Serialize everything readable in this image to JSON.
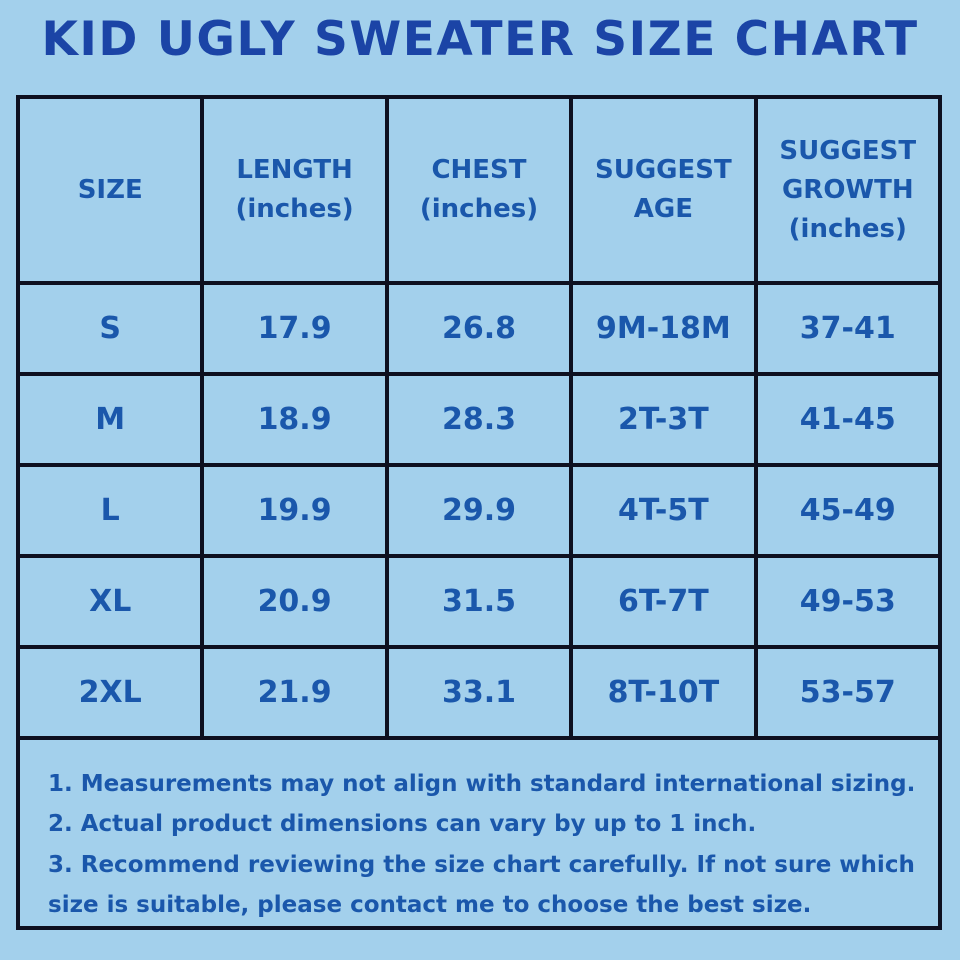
{
  "title": "KID UGLY SWEATER SIZE CHART",
  "colors": {
    "background": "#a3d0ec",
    "title_text": "#1b44a6",
    "table_text": "#1a57ab",
    "border": "#0e1020"
  },
  "chart_data": {
    "type": "table",
    "title": "KID UGLY SWEATER SIZE CHART",
    "columns": [
      "SIZE",
      "LENGTH\n(inches)",
      "CHEST\n(inches)",
      "SUGGEST\nAGE",
      "SUGGEST\nGROWTH\n(inches)"
    ],
    "rows": [
      [
        "S",
        "17.9",
        "26.8",
        "9M-18M",
        "37-41"
      ],
      [
        "M",
        "18.9",
        "28.3",
        "2T-3T",
        "41-45"
      ],
      [
        "L",
        "19.9",
        "29.9",
        "4T-5T",
        "45-49"
      ],
      [
        "XL",
        "20.9",
        "31.5",
        "6T-7T",
        "49-53"
      ],
      [
        "2XL",
        "21.9",
        "33.1",
        "8T-10T",
        "53-57"
      ]
    ]
  },
  "notes": [
    "1. Measurements may not align with standard international sizing.",
    "2. Actual product dimensions can vary by up to 1 inch.",
    "3. Recommend reviewing the size chart carefully. If not sure which size is suitable, please contact me to choose the best size."
  ]
}
